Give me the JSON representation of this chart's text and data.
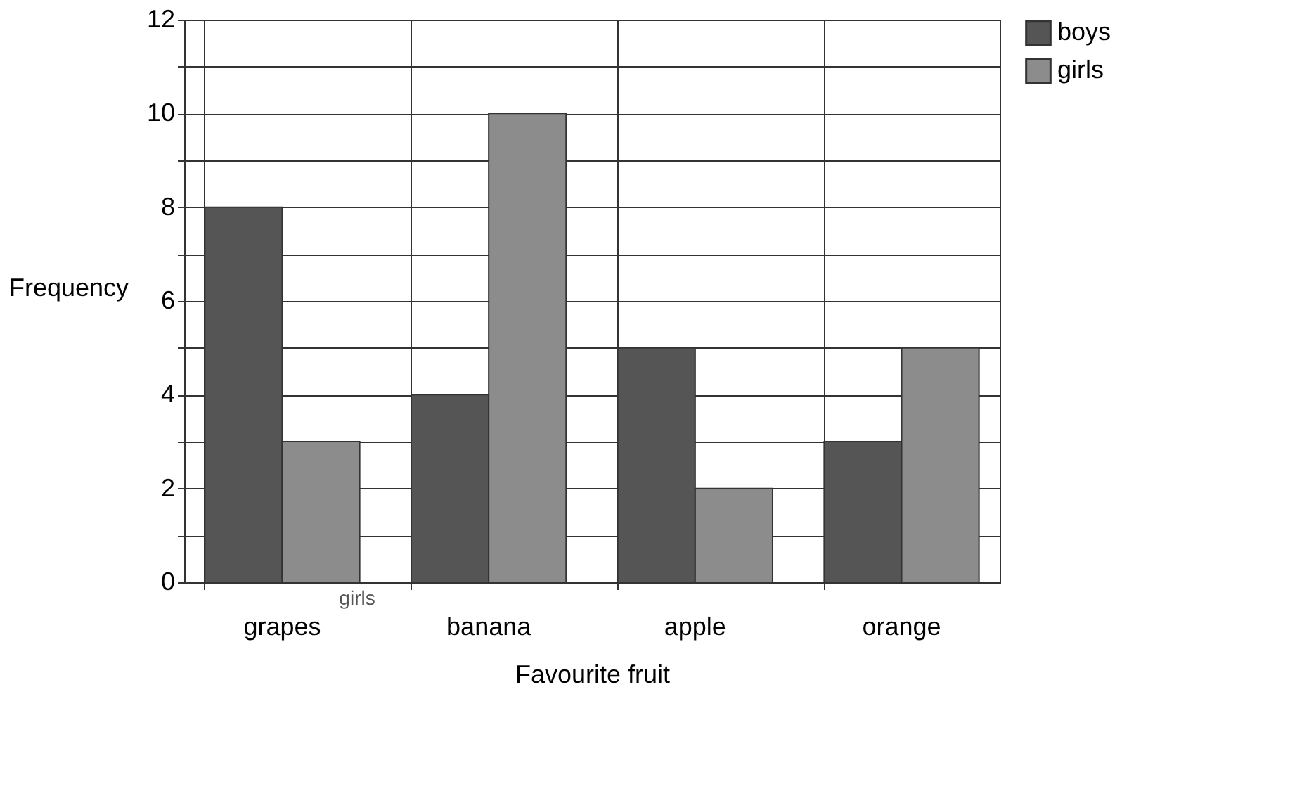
{
  "chart_data": {
    "type": "bar",
    "xlabel": "Favourite fruit",
    "ylabel": "Frequency",
    "categories": [
      "grapes",
      "banana",
      "apple",
      "orange"
    ],
    "series": [
      {
        "name": "boys",
        "color": "#555555",
        "values": [
          8,
          4,
          5,
          3
        ]
      },
      {
        "name": "girls",
        "color": "#8c8c8c",
        "values": [
          3,
          10,
          2,
          5
        ]
      }
    ],
    "ylim": [
      0,
      12
    ],
    "yticks": [
      0,
      {
        "value": 1,
        "label": null
      },
      2,
      {
        "value": 3,
        "label": null
      },
      4,
      {
        "value": 5,
        "label": null
      },
      6,
      {
        "value": 7,
        "label": null
      },
      8,
      {
        "value": 9,
        "label": null
      },
      10,
      {
        "value": 11,
        "label": null
      },
      12
    ],
    "grid": true,
    "legend": "right",
    "annotations": [
      "girls"
    ]
  }
}
